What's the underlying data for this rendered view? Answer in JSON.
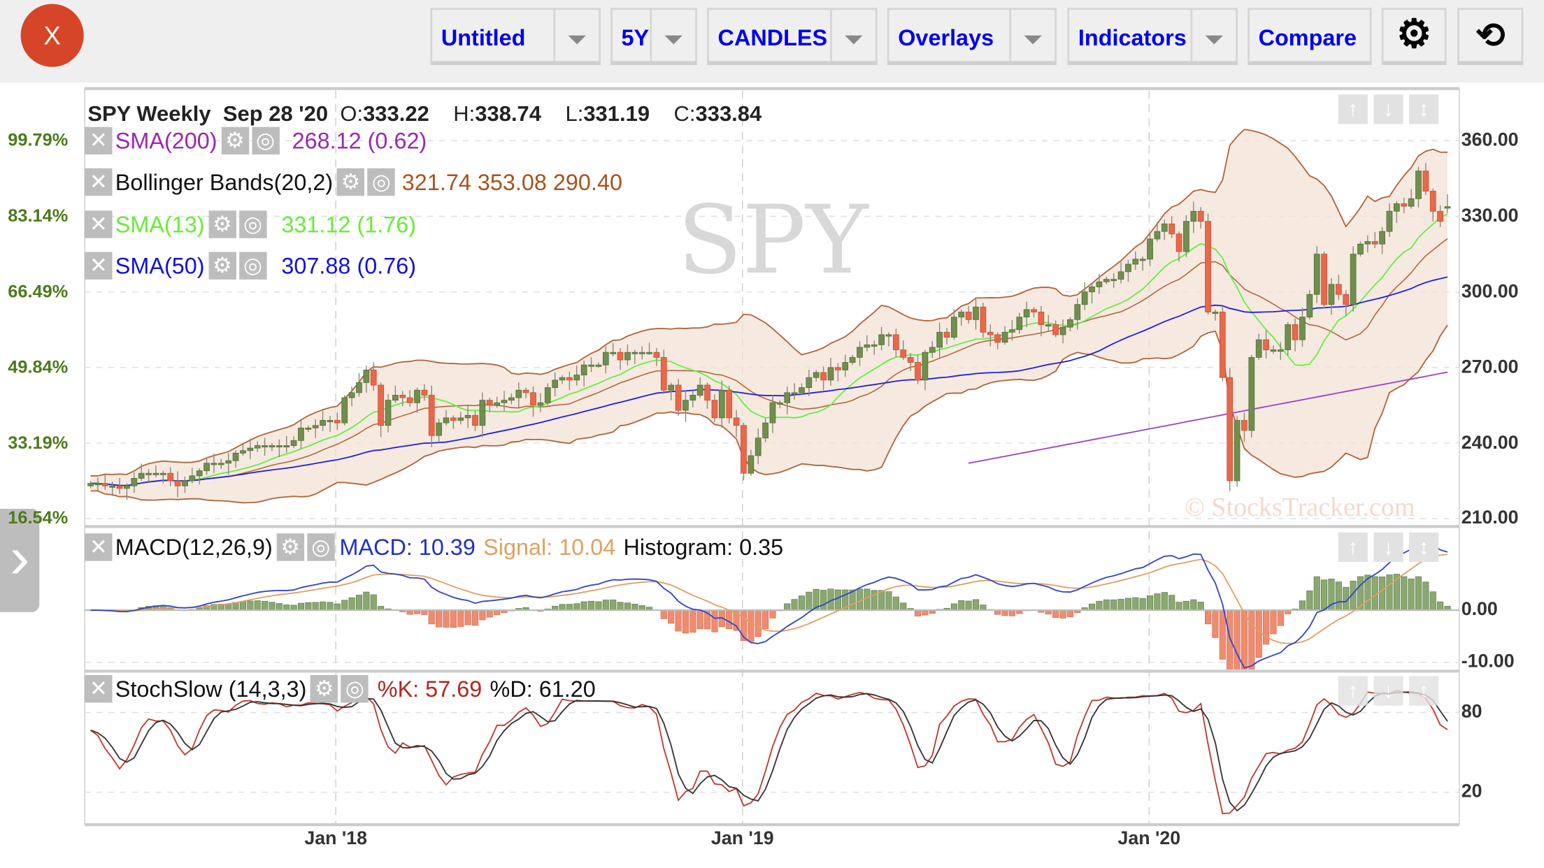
{
  "toolbar": {
    "close_label": "X",
    "chart_name": "Untitled",
    "period": "5Y",
    "chart_type": "CANDLES",
    "overlays": "Overlays",
    "indicators": "Indicators",
    "compare": "Compare",
    "settings_icon": "gear-icon",
    "reset_icon": "reset-icon"
  },
  "header": {
    "title": "SPY Weekly",
    "date": "Sep 28 '20",
    "o_label": "O:",
    "o": "333.22",
    "h_label": "H:",
    "h": "338.74",
    "l_label": "L:",
    "l": "331.19",
    "c_label": "C:",
    "c": "333.84"
  },
  "overlays": [
    {
      "name": "SMA(200)",
      "value": "268.12 (0.62)",
      "color": "#9b27b0"
    },
    {
      "name": "Bollinger Bands(20,2)",
      "value": "321.74 353.08 290.40",
      "color": "#a9521f"
    },
    {
      "name": "SMA(13)",
      "value": "331.12 (1.76)",
      "color": "#66ee33"
    },
    {
      "name": "SMA(50)",
      "value": "307.88 (0.76)",
      "color": "#1111dd"
    }
  ],
  "macd": {
    "name": "MACD(12,26,9)",
    "macd": "MACD: 10.39",
    "signal": "Signal: 10.04",
    "histogram": "Histogram: 0.35"
  },
  "stoch": {
    "name": "StochSlow (14,3,3)",
    "k": "%K: 57.69",
    "d": "%D: 61.20"
  },
  "watermark": "SPY",
  "copyright": "© StocksTracker.com",
  "chart_data": {
    "type": "candlestick",
    "symbol": "SPY",
    "interval": "Weekly",
    "price_ticks": [
      "360.00",
      "330.00",
      "300.00",
      "270.00",
      "240.00",
      "210.00"
    ],
    "price_tick_values": [
      360,
      330,
      300,
      270,
      240,
      210
    ],
    "percent_ticks": [
      "99.79%",
      "83.14%",
      "66.49%",
      "49.84%",
      "33.19%",
      "16.54%"
    ],
    "macd_ticks": [
      "0.00",
      "-10.00"
    ],
    "stoch_ticks": [
      "80",
      "20"
    ],
    "x_ticks": [
      "Jan '18",
      "Jan '19",
      "Jan '20"
    ],
    "x_tick_index": [
      32,
      83,
      134
    ],
    "ylim": [
      210,
      360
    ],
    "last_bar": {
      "o": 333.22,
      "h": 338.74,
      "l": 331.19,
      "c": 333.84
    },
    "sma200_range": [
      232,
      268.12
    ],
    "closes": [
      224,
      224,
      223,
      223,
      222,
      223,
      226,
      228,
      228,
      228,
      228,
      225,
      223,
      225,
      227,
      229,
      232,
      232,
      232,
      233,
      236,
      237,
      238,
      239,
      239,
      239,
      239,
      239,
      241,
      246,
      246,
      247,
      249,
      249,
      248,
      258,
      260,
      264,
      269,
      263,
      247,
      257,
      259,
      258,
      256,
      261,
      259,
      243,
      248,
      250,
      249,
      250,
      251,
      247,
      257,
      255,
      256,
      257,
      258,
      261,
      260,
      255,
      256,
      262,
      265,
      266,
      265,
      267,
      271,
      271,
      271,
      276,
      276,
      273,
      276,
      276,
      276,
      276,
      274,
      261,
      263,
      253,
      257,
      259,
      263,
      257,
      250,
      261,
      250,
      247,
      228,
      235,
      242,
      248,
      256,
      256,
      260,
      260,
      262,
      266,
      268,
      265,
      270,
      269,
      272,
      274,
      278,
      279,
      279,
      283,
      283,
      277,
      274,
      272,
      265,
      276,
      278,
      284,
      282,
      290,
      292,
      289,
      294,
      284,
      283,
      280,
      284,
      285,
      290,
      293,
      292,
      287,
      287,
      283,
      286,
      289,
      295,
      300,
      302,
      304,
      305,
      305,
      308,
      311,
      313,
      313,
      321,
      324,
      327,
      323,
      316,
      328,
      332,
      328,
      292,
      292,
      266,
      225,
      249,
      245,
      274,
      281,
      277,
      277,
      277,
      287,
      281,
      290,
      299,
      315,
      295,
      303,
      299,
      295,
      315,
      319,
      320,
      319,
      324,
      332,
      335,
      334,
      337,
      348,
      340,
      332,
      328,
      333.84
    ]
  }
}
